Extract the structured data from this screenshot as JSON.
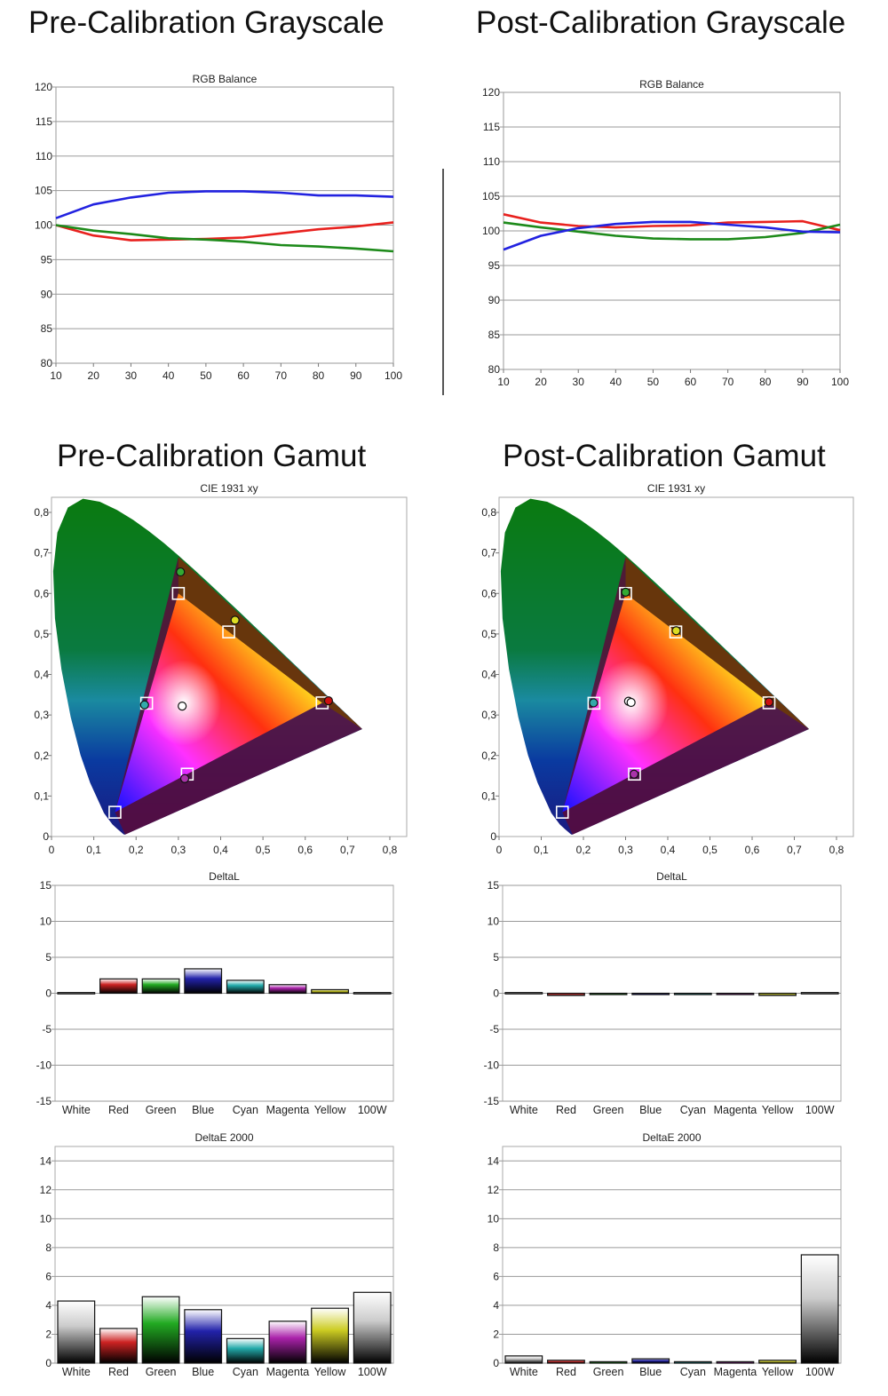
{
  "panels": [
    {
      "grayscale_heading": "Pre-Calibration Grayscale",
      "gamut_heading": "Pre-Calibration Gamut"
    },
    {
      "grayscale_heading": "Post-Calibration Grayscale",
      "gamut_heading": "Post-Calibration Gamut"
    }
  ],
  "chart_data": [
    {
      "panel": "pre",
      "type": "line",
      "title": "RGB Balance",
      "x": [
        10,
        20,
        30,
        40,
        50,
        60,
        70,
        80,
        90,
        100
      ],
      "ylim": [
        80,
        120
      ],
      "yticks": [
        80,
        85,
        90,
        95,
        100,
        105,
        110,
        115,
        120
      ],
      "grid": true,
      "series": [
        {
          "color": "#e8211e",
          "values": [
            100,
            98.5,
            97.8,
            97.9,
            98.0,
            98.2,
            98.8,
            99.4,
            99.8,
            100.4
          ]
        },
        {
          "color": "#1d8a1a",
          "values": [
            100,
            99.2,
            98.7,
            98.1,
            97.9,
            97.6,
            97.1,
            96.9,
            96.6,
            96.2
          ]
        },
        {
          "color": "#2222e0",
          "values": [
            101,
            103.0,
            104.0,
            104.7,
            104.9,
            104.9,
            104.7,
            104.3,
            104.3,
            104.1
          ]
        }
      ]
    },
    {
      "panel": "post",
      "type": "line",
      "title": "RGB Balance",
      "x": [
        10,
        20,
        30,
        40,
        50,
        60,
        70,
        80,
        90,
        100
      ],
      "ylim": [
        80,
        120
      ],
      "yticks": [
        80,
        85,
        90,
        95,
        100,
        105,
        110,
        115,
        120
      ],
      "grid": true,
      "series": [
        {
          "color": "#e8211e",
          "values": [
            102.4,
            101.2,
            100.7,
            100.5,
            100.7,
            100.8,
            101.2,
            101.3,
            101.4,
            100.1
          ]
        },
        {
          "color": "#1d8a1a",
          "values": [
            101.2,
            100.5,
            99.9,
            99.3,
            98.9,
            98.8,
            98.8,
            99.1,
            99.7,
            100.9
          ]
        },
        {
          "color": "#2222e0",
          "values": [
            97.3,
            99.3,
            100.4,
            101.0,
            101.3,
            101.3,
            100.9,
            100.5,
            99.9,
            99.8
          ]
        }
      ]
    },
    {
      "panel": "pre",
      "type": "scatter",
      "title": "CIE 1931 xy",
      "xlim": [
        0,
        0.8
      ],
      "ylim": [
        0,
        0.8
      ],
      "xticks": [
        "0",
        "0,1",
        "0,2",
        "0,3",
        "0,4",
        "0,5",
        "0,6",
        "0,7",
        "0,8"
      ],
      "yticks": [
        "0",
        "0,1",
        "0,2",
        "0,3",
        "0,4",
        "0,5",
        "0,6",
        "0,7",
        "0,8"
      ],
      "targets": [
        {
          "x": 0.64,
          "y": 0.33
        },
        {
          "x": 0.3,
          "y": 0.6
        },
        {
          "x": 0.15,
          "y": 0.06
        },
        {
          "x": 0.419,
          "y": 0.505
        },
        {
          "x": 0.225,
          "y": 0.329
        },
        {
          "x": 0.321,
          "y": 0.154
        }
      ],
      "measured": [
        {
          "x": 0.655,
          "y": 0.335,
          "color": "#cc1111"
        },
        {
          "x": 0.305,
          "y": 0.653,
          "color": "#33aa33"
        },
        {
          "x": 0.434,
          "y": 0.534,
          "color": "#dddd22"
        },
        {
          "x": 0.22,
          "y": 0.325,
          "color": "#33aaaa"
        },
        {
          "x": 0.309,
          "y": 0.322,
          "color": "#ffffff"
        },
        {
          "x": 0.315,
          "y": 0.143,
          "color": "#aa33aa"
        }
      ]
    },
    {
      "panel": "post",
      "type": "scatter",
      "title": "CIE 1931 xy",
      "xlim": [
        0,
        0.8
      ],
      "ylim": [
        0,
        0.8
      ],
      "xticks": [
        "0",
        "0,1",
        "0,2",
        "0,3",
        "0,4",
        "0,5",
        "0,6",
        "0,7",
        "0,8"
      ],
      "yticks": [
        "0",
        "0,1",
        "0,2",
        "0,3",
        "0,4",
        "0,5",
        "0,6",
        "0,7",
        "0,8"
      ],
      "targets": [
        {
          "x": 0.64,
          "y": 0.33
        },
        {
          "x": 0.3,
          "y": 0.6
        },
        {
          "x": 0.15,
          "y": 0.06
        },
        {
          "x": 0.419,
          "y": 0.505
        },
        {
          "x": 0.225,
          "y": 0.329
        },
        {
          "x": 0.321,
          "y": 0.154
        }
      ],
      "measured": [
        {
          "x": 0.64,
          "y": 0.332,
          "color": "#cc1111"
        },
        {
          "x": 0.3,
          "y": 0.603,
          "color": "#33aa33"
        },
        {
          "x": 0.42,
          "y": 0.508,
          "color": "#dddd22"
        },
        {
          "x": 0.224,
          "y": 0.33,
          "color": "#33aaaa"
        },
        {
          "x": 0.307,
          "y": 0.334,
          "color": "#ffffff"
        },
        {
          "x": 0.313,
          "y": 0.331,
          "color": "#ffffff"
        },
        {
          "x": 0.32,
          "y": 0.154,
          "color": "#aa33aa"
        }
      ]
    },
    {
      "panel": "pre",
      "type": "bar",
      "title": "DeltaL",
      "categories": [
        "White",
        "Red",
        "Green",
        "Blue",
        "Cyan",
        "Magenta",
        "Yellow",
        "100W"
      ],
      "values": [
        0.1,
        2.0,
        2.0,
        3.4,
        1.8,
        1.2,
        0.5,
        0.1
      ],
      "colors": [
        "#cccccc",
        "#cc2222",
        "#22aa22",
        "#2222aa",
        "#22aaaa",
        "#aa22aa",
        "#cccc22",
        "#cccccc"
      ],
      "ylim": [
        -15,
        15
      ],
      "yticks": [
        -15,
        -10,
        -5,
        0,
        5,
        10,
        15
      ],
      "grid": true
    },
    {
      "panel": "post",
      "type": "bar",
      "title": "DeltaL",
      "categories": [
        "White",
        "Red",
        "Green",
        "Blue",
        "Cyan",
        "Magenta",
        "Yellow",
        "100W"
      ],
      "values": [
        0.1,
        -0.3,
        -0.1,
        -0.1,
        -0.1,
        -0.1,
        -0.3,
        0.1
      ],
      "colors": [
        "#cccccc",
        "#cc2222",
        "#22aa22",
        "#2222aa",
        "#22aaaa",
        "#aa22aa",
        "#cccc22",
        "#cccccc"
      ],
      "ylim": [
        -15,
        15
      ],
      "yticks": [
        -15,
        -10,
        -5,
        0,
        5,
        10,
        15
      ],
      "grid": true
    },
    {
      "panel": "pre",
      "type": "bar",
      "title": "DeltaE 2000",
      "categories": [
        "White",
        "Red",
        "Green",
        "Blue",
        "Cyan",
        "Magenta",
        "Yellow",
        "100W"
      ],
      "values": [
        4.3,
        2.4,
        4.6,
        3.7,
        1.7,
        2.9,
        3.8,
        4.9
      ],
      "colors": [
        "#cccccc",
        "#cc2222",
        "#22aa22",
        "#2222aa",
        "#22aaaa",
        "#aa22aa",
        "#cccc22",
        "#cccccc"
      ],
      "ylim": [
        0,
        15
      ],
      "yticks": [
        0,
        2,
        4,
        6,
        8,
        10,
        12,
        14
      ],
      "grid": true
    },
    {
      "panel": "post",
      "type": "bar",
      "title": "DeltaE 2000",
      "categories": [
        "White",
        "Red",
        "Green",
        "Blue",
        "Cyan",
        "Magenta",
        "Yellow",
        "100W"
      ],
      "values": [
        0.5,
        0.2,
        0.1,
        0.3,
        0.1,
        0.1,
        0.2,
        7.5
      ],
      "colors": [
        "#cccccc",
        "#cc2222",
        "#22aa22",
        "#2222aa",
        "#22aaaa",
        "#aa22aa",
        "#cccc22",
        "#cccccc"
      ],
      "ylim": [
        0,
        15
      ],
      "yticks": [
        0,
        2,
        4,
        6,
        8,
        10,
        12,
        14
      ],
      "grid": true
    }
  ]
}
